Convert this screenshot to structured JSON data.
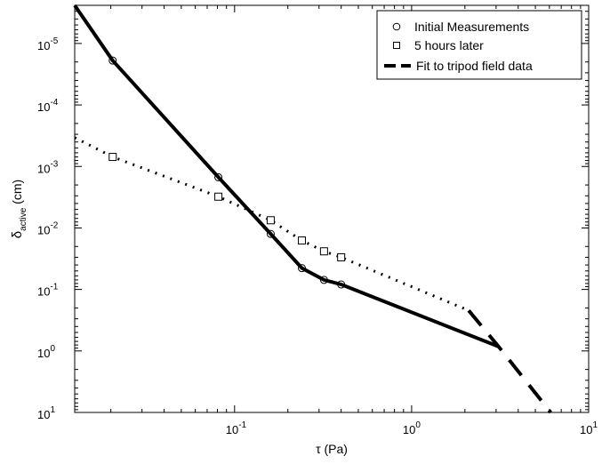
{
  "chart_data": {
    "type": "line",
    "xlabel": "τ (Pa)",
    "ylabel_main": "δ",
    "ylabel_sub": "active",
    "ylabel_unit": "(cm)",
    "x_scale": "log",
    "y_scale": "log",
    "y_reversed": true,
    "xlim": [
      0.0125,
      10
    ],
    "ylim": [
      2.4e-06,
      10
    ],
    "x_ticks": [
      {
        "value": 0.1,
        "base": "10",
        "exp": "-1"
      },
      {
        "value": 1,
        "base": "10",
        "exp": "0"
      },
      {
        "value": 10,
        "base": "10",
        "exp": "1"
      }
    ],
    "y_ticks": [
      {
        "value": 1e-05,
        "base": "10",
        "exp": "-5"
      },
      {
        "value": 0.0001,
        "base": "10",
        "exp": "-4"
      },
      {
        "value": 0.001,
        "base": "10",
        "exp": "-3"
      },
      {
        "value": 0.01,
        "base": "10",
        "exp": "-2"
      },
      {
        "value": 0.1,
        "base": "10",
        "exp": "-1"
      },
      {
        "value": 1,
        "base": "10",
        "exp": "0"
      },
      {
        "value": 10,
        "base": "10",
        "exp": "1"
      }
    ],
    "legend_position": "top-right",
    "grid": false,
    "series": [
      {
        "name": "Initial Measurements",
        "style": "markers-solid-line",
        "marker": "circle",
        "points": [
          {
            "x": 0.0125,
            "y": 2.4e-06
          },
          {
            "x": 0.0205,
            "y": 1.9e-05
          },
          {
            "x": 0.081,
            "y": 0.0015
          },
          {
            "x": 0.16,
            "y": 0.0125
          },
          {
            "x": 0.24,
            "y": 0.045
          },
          {
            "x": 0.32,
            "y": 0.07
          },
          {
            "x": 0.4,
            "y": 0.083
          },
          {
            "x": 3.1,
            "y": 0.85
          }
        ],
        "marker_points": [
          {
            "x": 0.0205,
            "y": 1.9e-05
          },
          {
            "x": 0.081,
            "y": 0.0015
          },
          {
            "x": 0.16,
            "y": 0.0125
          },
          {
            "x": 0.24,
            "y": 0.045
          },
          {
            "x": 0.32,
            "y": 0.07
          },
          {
            "x": 0.4,
            "y": 0.083
          }
        ]
      },
      {
        "name": "5 hours later",
        "style": "markers-dotted-line",
        "marker": "square",
        "points": [
          {
            "x": 0.0125,
            "y": 0.00034
          },
          {
            "x": 0.0205,
            "y": 0.0007
          },
          {
            "x": 0.081,
            "y": 0.0031
          },
          {
            "x": 0.16,
            "y": 0.0075
          },
          {
            "x": 0.24,
            "y": 0.016
          },
          {
            "x": 0.32,
            "y": 0.024
          },
          {
            "x": 0.4,
            "y": 0.03
          },
          {
            "x": 2.1,
            "y": 0.22
          }
        ],
        "marker_points": [
          {
            "x": 0.0205,
            "y": 0.0007
          },
          {
            "x": 0.081,
            "y": 0.0031
          },
          {
            "x": 0.16,
            "y": 0.0075
          },
          {
            "x": 0.24,
            "y": 0.016
          },
          {
            "x": 0.32,
            "y": 0.024
          },
          {
            "x": 0.4,
            "y": 0.03
          }
        ]
      },
      {
        "name": "Fit to tripod field data",
        "style": "dashed-line",
        "marker": "none",
        "points": [
          {
            "x": 2.1,
            "y": 0.22
          },
          {
            "x": 3.1,
            "y": 0.85
          },
          {
            "x": 6.1,
            "y": 10
          }
        ]
      }
    ]
  }
}
